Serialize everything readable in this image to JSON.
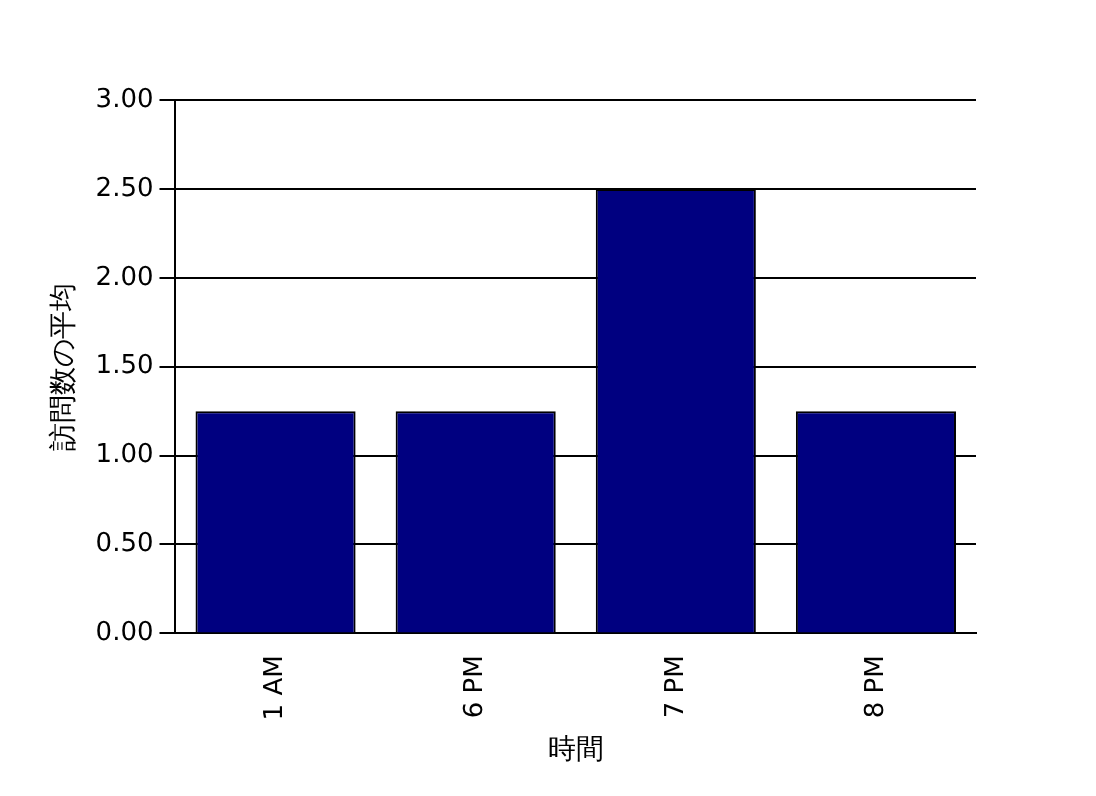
{
  "chart_data": {
    "type": "bar",
    "xlabel": "時間",
    "ylabel": "訪問数の平均",
    "categories": [
      "1 AM",
      "6 PM",
      "7 PM",
      "8 PM"
    ],
    "series": [
      {
        "color": "#000080",
        "values": [
          1.25,
          1.25,
          2.5,
          1.25
        ]
      }
    ],
    "ylim": [
      0,
      3
    ],
    "yticks": [
      {
        "value": 0,
        "label": "0.00"
      },
      {
        "value": 0.5,
        "label": "0.50"
      },
      {
        "value": 1,
        "label": "1.00"
      },
      {
        "value": 1.5,
        "label": "1.50"
      },
      {
        "value": 2,
        "label": "2.00"
      },
      {
        "value": 2.5,
        "label": "2.50"
      },
      {
        "value": 3,
        "label": "3.00"
      }
    ],
    "grid": "y",
    "legend": false
  }
}
